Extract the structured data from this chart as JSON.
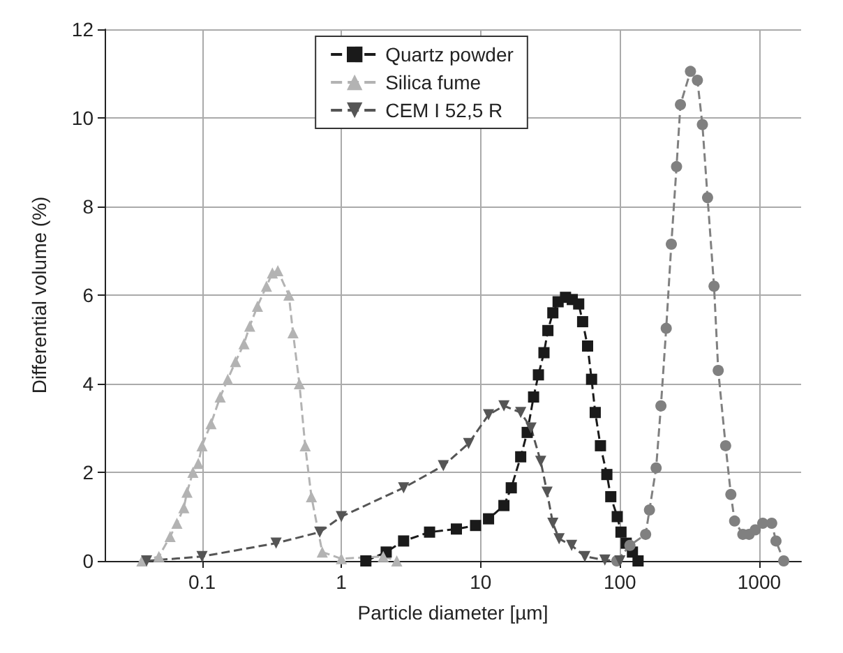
{
  "chart_data": {
    "type": "line",
    "xlabel": "Particle diameter [µm]",
    "ylabel": "Differential volume (%)",
    "log": "x",
    "xlim": [
      0.02,
      2000
    ],
    "xticks": [
      0.1,
      1,
      10,
      100,
      1000
    ],
    "ylim": [
      0,
      12
    ],
    "yticks": [
      0,
      2,
      4,
      6,
      8,
      10,
      12
    ],
    "grid": true,
    "legend": "top",
    "line_style": "dashed",
    "series": [
      {
        "name": "Quartz powder",
        "color": "#1a1a1a",
        "marker": "square",
        "x": [
          1.5,
          2.1,
          2.8,
          4.3,
          6.7,
          9.2,
          11.4,
          14.7,
          16.6,
          19.4,
          21.6,
          24,
          26,
          28.5,
          30.4,
          33,
          36,
          40.7,
          45.5,
          50.6,
          54,
          58.6,
          62.6,
          66.5,
          72.5,
          80.6,
          86,
          95.7,
          101.8,
          111,
          123,
          135
        ],
        "values": [
          0,
          0.2,
          0.45,
          0.65,
          0.72,
          0.8,
          0.95,
          1.25,
          1.65,
          2.35,
          2.9,
          3.7,
          4.2,
          4.7,
          5.2,
          5.6,
          5.85,
          5.95,
          5.9,
          5.8,
          5.4,
          4.85,
          4.1,
          3.35,
          2.6,
          1.95,
          1.45,
          1,
          0.65,
          0.4,
          0.2,
          0
        ]
      },
      {
        "color": "#808080",
        "marker": "circle",
        "x": [
          95,
          118,
          153,
          163,
          182,
          197,
          215,
          234,
          255,
          272,
          321,
          360,
          391,
          426,
          474,
          508,
          574,
          626,
          666,
          763,
          846,
          937,
          1060,
          1230,
          1320,
          1500
        ],
        "values": [
          0,
          0.35,
          0.6,
          1.15,
          2.1,
          3.5,
          5.25,
          7.15,
          8.9,
          10.3,
          11.05,
          10.85,
          9.85,
          8.2,
          6.2,
          4.3,
          2.6,
          1.5,
          0.9,
          0.6,
          0.6,
          0.7,
          0.85,
          0.85,
          0.45,
          0
        ]
      },
      {
        "name": "Silica fume",
        "color": "#b3b3b3",
        "marker": "triangle",
        "x": [
          0.037,
          0.049,
          0.059,
          0.066,
          0.074,
          0.078,
          0.086,
          0.094,
          0.1,
          0.116,
          0.135,
          0.153,
          0.174,
          0.2,
          0.22,
          0.25,
          0.29,
          0.32,
          0.35,
          0.42,
          0.45,
          0.5,
          0.55,
          0.61,
          0.73,
          1,
          2,
          2.5
        ],
        "values": [
          0,
          0.1,
          0.55,
          0.85,
          1.2,
          1.55,
          2,
          2.2,
          2.6,
          3.1,
          3.7,
          4.1,
          4.5,
          4.9,
          5.3,
          5.75,
          6.2,
          6.5,
          6.55,
          6,
          5.15,
          4,
          2.6,
          1.45,
          0.2,
          0.05,
          0.1,
          0
        ]
      },
      {
        "name": "CEM I 52,5 R",
        "color": "#555555",
        "marker": "triangle-down",
        "x": [
          0.04,
          0.1,
          0.34,
          0.7,
          1,
          2.8,
          5.4,
          8.2,
          11.4,
          14.7,
          19.4,
          23,
          27,
          30,
          33,
          36.6,
          45,
          56,
          78,
          100
        ],
        "values": [
          0,
          0.1,
          0.4,
          0.65,
          1,
          1.65,
          2.15,
          2.65,
          3.3,
          3.5,
          3.35,
          3,
          2.25,
          1.55,
          0.85,
          0.5,
          0.35,
          0.1,
          0.02,
          0
        ]
      }
    ]
  }
}
